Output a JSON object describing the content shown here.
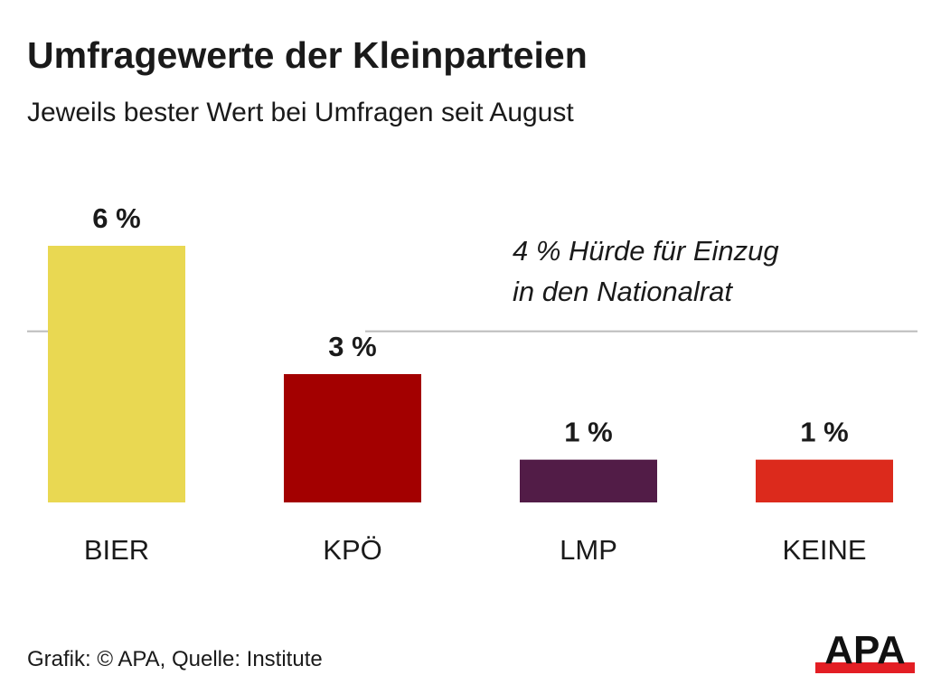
{
  "chart_data": {
    "type": "bar",
    "title": "Umfragewerte der Kleinparteien",
    "subtitle": "Jeweils bester Wert bei Umfragen seit August",
    "categories": [
      "BIER",
      "KPÖ",
      "LMP",
      "KEINE"
    ],
    "values": [
      6,
      3,
      1,
      1
    ],
    "value_labels": [
      "6 %",
      "3 %",
      "1 %",
      "1 %"
    ],
    "colors": [
      "#E9D852",
      "#A30000",
      "#521C47",
      "#DC2A1C"
    ],
    "unit": "%",
    "ylim": [
      0,
      6
    ],
    "grid": false,
    "reference_line": {
      "value": 4,
      "label_lines": [
        "4 % Hürde für Einzug",
        "in den Nationalrat"
      ],
      "color": "#bbbbbb"
    }
  },
  "footer": {
    "source": "Grafik: © APA, Quelle: Institute",
    "logo_text": "APA"
  }
}
